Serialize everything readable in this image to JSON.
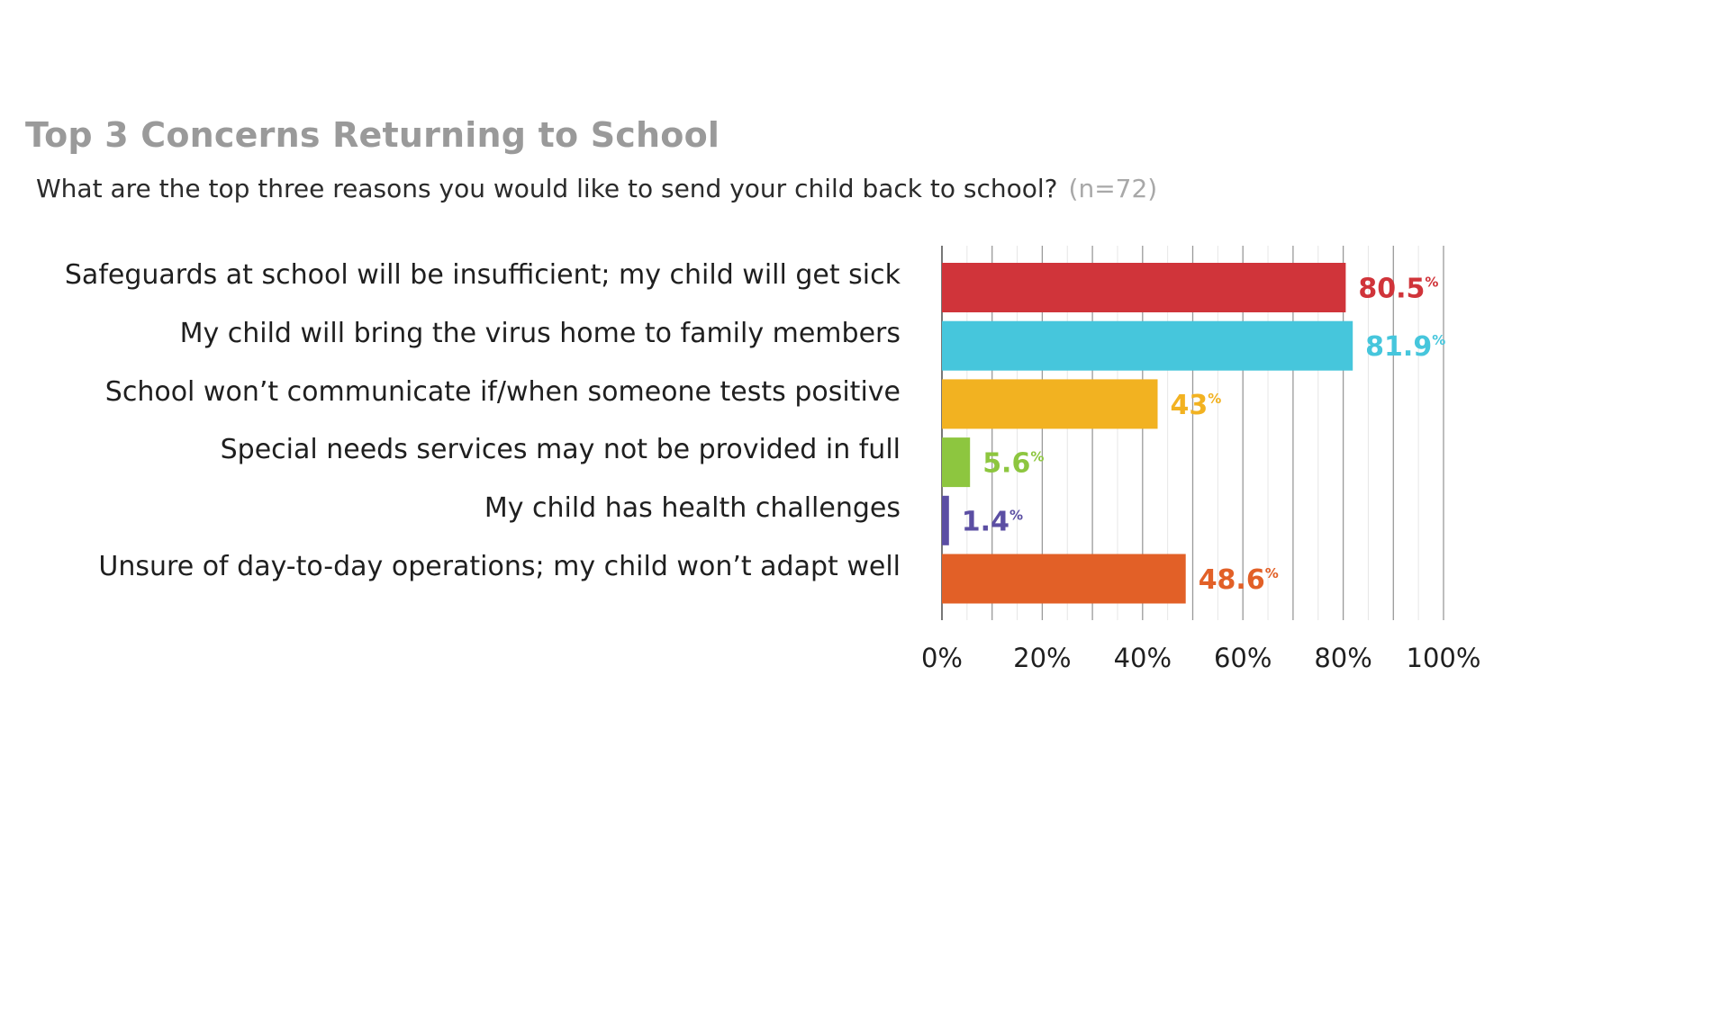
{
  "title": "Top 3 Concerns Returning to School",
  "subtitle": {
    "question": "What are the top three reasons you would like to send your child back to school?",
    "sample": "(n=72)"
  },
  "chart_data": {
    "type": "bar",
    "orientation": "horizontal",
    "title": "Top 3 Concerns Returning to School",
    "categories": [
      "Safeguards at school will be insufficient; my child will get sick",
      "My child will bring the virus home to family members",
      "School won’t communicate if/when someone tests positive",
      "Special needs services may not be provided in full",
      "My child has health challenges",
      "Unsure of day-to-day operations; my child won’t adapt well"
    ],
    "values": [
      80.5,
      81.9,
      43,
      5.6,
      1.4,
      48.6
    ],
    "value_labels": [
      "80.5",
      "81.9",
      "43",
      "5.6",
      "1.4",
      "48.6"
    ],
    "value_suffix": "%",
    "colors": [
      "#d0343a",
      "#46c6dc",
      "#f2b221",
      "#8dc63f",
      "#5b4ea3",
      "#e26027"
    ],
    "xlim": [
      0,
      100
    ],
    "xticks": [
      "0%",
      "20%",
      "40%",
      "60%",
      "80%",
      "100%"
    ],
    "grid": true,
    "legend": "none"
  }
}
